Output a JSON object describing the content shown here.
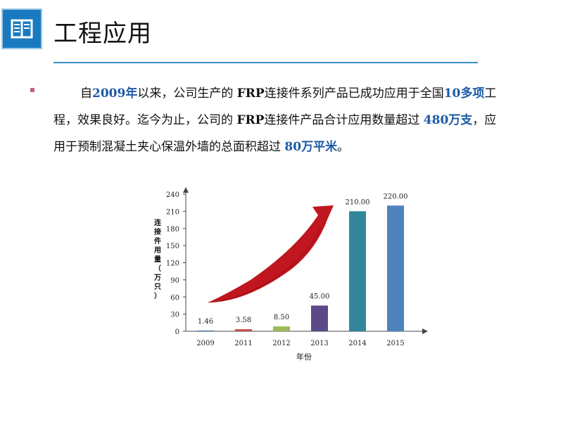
{
  "slide": {
    "title": "工程应用",
    "logo_icon": "book-icon",
    "accent_color": "#1a7abf"
  },
  "paragraph": {
    "t1": "自",
    "h1": "2009年",
    "t2": "以来，公司生产的 ",
    "t3": "FRP",
    "t4": "连接件系列产品已成功应用于全国",
    "h2": "10多项",
    "t5": "工程，效果良好。迄今为止，公司的 ",
    "t6": "FRP",
    "t7": "连接件产品合计应用数量超过 ",
    "h3": "480万支",
    "t8": "，应用于预制混凝土夹心保温外墙的总面积超过 ",
    "h4": "80万平米",
    "t9": "。"
  },
  "chart_data": {
    "type": "bar",
    "categories": [
      "2009",
      "2011",
      "2012",
      "2013",
      "2014",
      "2015"
    ],
    "values": [
      1.46,
      3.58,
      8.5,
      45.0,
      210.0,
      220.0
    ],
    "value_labels": [
      "1.46",
      "3.58",
      "8.50",
      "45.00",
      "210.00",
      "220.00"
    ],
    "bar_colors": [
      "#4f81bd",
      "#c0504d",
      "#9bbb59",
      "#5b4a8a",
      "#31869b",
      "#4f81bd"
    ],
    "ylabel": "连接件用量（万只）",
    "xlabel": "年份",
    "ylim": [
      0,
      240
    ],
    "yticks": [
      0,
      30,
      60,
      90,
      120,
      150,
      180,
      210,
      240
    ],
    "trend_arrow_color": "#c0161f",
    "grid": false,
    "legend": "none"
  }
}
